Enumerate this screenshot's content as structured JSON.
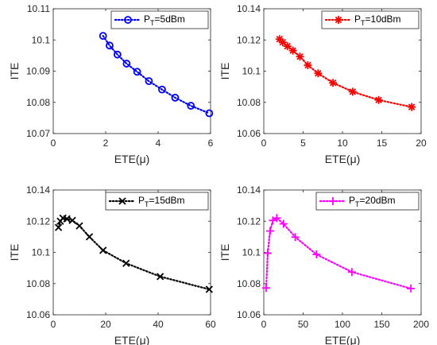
{
  "chart_data": [
    {
      "type": "line",
      "xlabel": "ETE(μ)",
      "ylabel": "ITE",
      "xlim": [
        0,
        6
      ],
      "ylim": [
        10.07,
        10.11
      ],
      "xticks": [
        0,
        2,
        4,
        6
      ],
      "yticks": [
        10.07,
        10.08,
        10.09,
        10.1,
        10.11
      ],
      "xtick_labels": [
        "0",
        "2",
        "4",
        "6"
      ],
      "ytick_labels": [
        "10.07",
        "10.08",
        "10.09",
        "10.1",
        "10.11"
      ],
      "grid": false,
      "legend_position": "top-right",
      "series": [
        {
          "legend_main": "P",
          "legend_sub": "T",
          "legend_rest": "=5dBm",
          "color": "#0000ff",
          "marker": "circle",
          "line_style": "dotted",
          "x": [
            1.9,
            2.15,
            2.45,
            2.8,
            3.2,
            3.65,
            4.15,
            4.65,
            5.25,
            5.95
          ],
          "y": [
            10.1013,
            10.0982,
            10.0953,
            10.0924,
            10.0898,
            10.0868,
            10.0841,
            10.0815,
            10.0789,
            10.0765
          ]
        }
      ]
    },
    {
      "type": "line",
      "xlabel": "ETE(μ)",
      "ylabel": "ITE",
      "xlim": [
        0,
        20
      ],
      "ylim": [
        10.06,
        10.14
      ],
      "xticks": [
        0,
        5,
        10,
        15,
        20
      ],
      "yticks": [
        10.06,
        10.08,
        10.1,
        10.12,
        10.14
      ],
      "xtick_labels": [
        "0",
        "5",
        "10",
        "15",
        "20"
      ],
      "ytick_labels": [
        "10.06",
        "10.08",
        "10.1",
        "10.12",
        "10.14"
      ],
      "grid": false,
      "legend_position": "top-right",
      "series": [
        {
          "legend_main": "P",
          "legend_sub": "T",
          "legend_rest": "=10dBm",
          "color": "#ff0000",
          "marker": "asterisk",
          "line_style": "dotted",
          "x": [
            2.0,
            2.4,
            3.0,
            3.7,
            4.6,
            5.6,
            6.9,
            8.8,
            11.3,
            14.6,
            18.8
          ],
          "y": [
            10.1205,
            10.1185,
            10.116,
            10.1132,
            10.1093,
            10.1038,
            10.0986,
            10.0925,
            10.0868,
            10.0815,
            10.077
          ]
        }
      ]
    },
    {
      "type": "line",
      "xlabel": "ETE(μ)",
      "ylabel": "ITE",
      "xlim": [
        0,
        60
      ],
      "ylim": [
        10.06,
        10.14
      ],
      "xticks": [
        0,
        20,
        40,
        60
      ],
      "yticks": [
        10.06,
        10.08,
        10.1,
        10.12,
        10.14
      ],
      "xtick_labels": [
        "0",
        "20",
        "40",
        "60"
      ],
      "ytick_labels": [
        "10.06",
        "10.08",
        "10.1",
        "10.12",
        "10.14"
      ],
      "grid": false,
      "legend_position": "top-right",
      "series": [
        {
          "legend_main": "P",
          "legend_sub": "T",
          "legend_rest": "=15dBm",
          "color": "#000000",
          "marker": "x",
          "line_style": "dotted",
          "x": [
            2.0,
            2.7,
            3.7,
            5.2,
            7.3,
            10.0,
            13.8,
            19.0,
            27.8,
            40.8,
            59.5
          ],
          "y": [
            10.116,
            10.12,
            10.122,
            10.1215,
            10.1205,
            10.117,
            10.11,
            10.1013,
            10.093,
            10.0845,
            10.0763
          ]
        }
      ]
    },
    {
      "type": "line",
      "xlabel": "ETE(μ)",
      "ylabel": "ITE",
      "xlim": [
        0,
        200
      ],
      "ylim": [
        10.06,
        10.14
      ],
      "xticks": [
        0,
        50,
        100,
        150,
        200
      ],
      "yticks": [
        10.06,
        10.08,
        10.1,
        10.12,
        10.14
      ],
      "xtick_labels": [
        "0",
        "50",
        "100",
        "150",
        "200"
      ],
      "ytick_labels": [
        "10.06",
        "10.08",
        "10.1",
        "10.12",
        "10.14"
      ],
      "grid": false,
      "legend_position": "top-right",
      "series": [
        {
          "legend_main": "P",
          "legend_sub": "T",
          "legend_rest": "=20dBm",
          "color": "#ff00ff",
          "marker": "plus",
          "line_style": "dotted",
          "x": [
            3.0,
            5.0,
            8.0,
            11.5,
            16.5,
            25.0,
            40.0,
            67.0,
            112.0,
            187.0
          ],
          "y": [
            10.0772,
            10.0995,
            10.1137,
            10.1205,
            10.122,
            10.1183,
            10.1098,
            10.0987,
            10.0874,
            10.0768
          ]
        }
      ]
    }
  ]
}
